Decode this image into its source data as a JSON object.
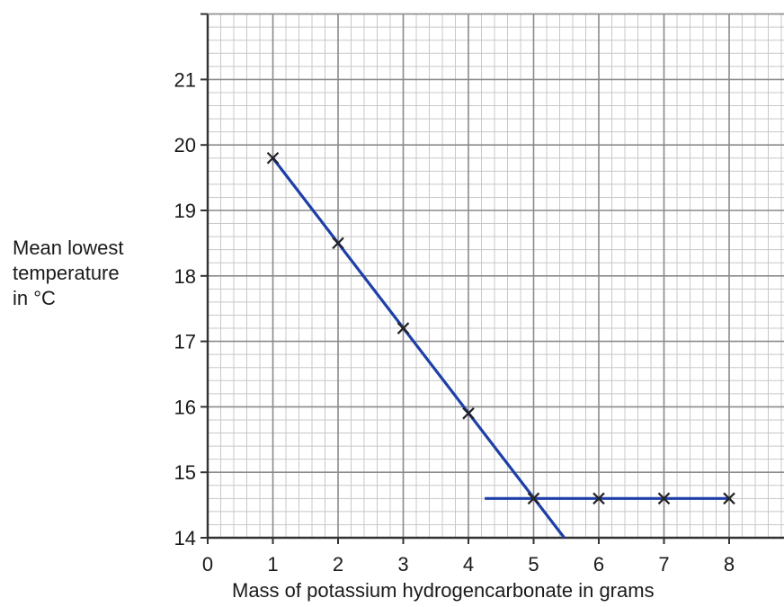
{
  "chart_data": {
    "type": "line",
    "xlabel": "Mass of potassium hydrogencarbonate in grams",
    "ylabel_lines": [
      "Mean lowest",
      "temperature",
      "in °C"
    ],
    "xlim": [
      0,
      8.85
    ],
    "ylim": [
      14,
      22
    ],
    "x_ticks": [
      "0",
      "1",
      "2",
      "3",
      "4",
      "5",
      "6",
      "7",
      "8"
    ],
    "y_ticks": [
      "14",
      "15",
      "16",
      "17",
      "18",
      "19",
      "20",
      "21"
    ],
    "grid": true,
    "points": [
      {
        "x": 1,
        "y": 19.8
      },
      {
        "x": 2,
        "y": 18.5
      },
      {
        "x": 3,
        "y": 17.2
      },
      {
        "x": 4,
        "y": 15.9
      },
      {
        "x": 5,
        "y": 14.6
      },
      {
        "x": 6,
        "y": 14.6
      },
      {
        "x": 7,
        "y": 14.6
      },
      {
        "x": 8,
        "y": 14.6
      }
    ],
    "lines": [
      {
        "from": {
          "x": 1,
          "y": 19.8
        },
        "to": {
          "x": 5.47,
          "y": 14.0
        }
      },
      {
        "from": {
          "x": 4.25,
          "y": 14.6
        },
        "to": {
          "x": 8,
          "y": 14.6
        }
      }
    ],
    "colors": {
      "line": "#1f3fa8",
      "marker": "#222222",
      "grid_minor": "#c8c8c8",
      "grid_major": "#8a8a8a",
      "axis": "#333333"
    }
  }
}
